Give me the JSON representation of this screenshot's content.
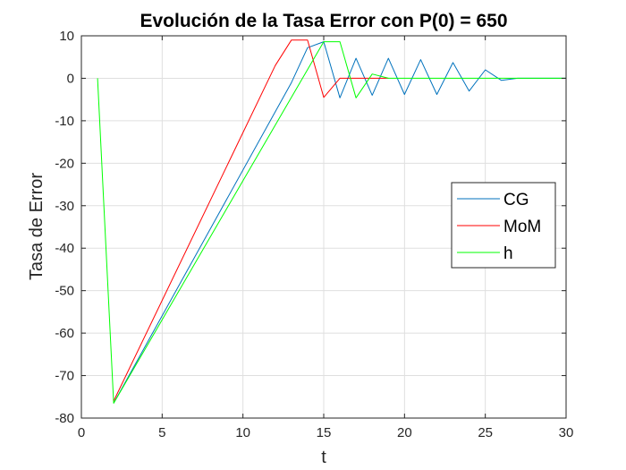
{
  "chart_data": {
    "type": "line",
    "title": "Evolución de la Tasa Error con P(0) = 650",
    "xlabel": "t",
    "ylabel": "Tasa de Error",
    "xlim": [
      0,
      30
    ],
    "ylim": [
      -80,
      10
    ],
    "xticks": [
      0,
      5,
      10,
      15,
      20,
      25,
      30
    ],
    "yticks": [
      10,
      0,
      -10,
      -20,
      -30,
      -40,
      -50,
      -60,
      -70,
      -80
    ],
    "grid": true,
    "legend_position": "right",
    "series": [
      {
        "name": "CG",
        "color": "#0072BD",
        "points": [
          [
            2,
            -76.5
          ],
          [
            13,
            -1
          ],
          [
            14,
            7.2
          ],
          [
            15,
            8.6
          ],
          [
            16,
            -4.6
          ],
          [
            17,
            4.7
          ],
          [
            18,
            -4
          ],
          [
            19,
            4.7
          ],
          [
            20,
            -3.8
          ],
          [
            21,
            4.4
          ],
          [
            22,
            -3.8
          ],
          [
            23,
            3.7
          ],
          [
            24,
            -3
          ],
          [
            25,
            2
          ],
          [
            26,
            -0.5
          ],
          [
            27,
            0
          ],
          [
            30,
            0
          ]
        ]
      },
      {
        "name": "MoM",
        "color": "#FF0000",
        "points": [
          [
            2,
            -76
          ],
          [
            12,
            3
          ],
          [
            13,
            9
          ],
          [
            14,
            9
          ],
          [
            15,
            -4.5
          ],
          [
            16,
            0
          ],
          [
            19,
            0
          ]
        ]
      },
      {
        "name": "h",
        "color": "#00FF00",
        "points": [
          [
            1,
            0
          ],
          [
            2,
            -76.5
          ],
          [
            15,
            8.6
          ],
          [
            16,
            8.6
          ],
          [
            17,
            -4.6
          ],
          [
            18,
            1
          ],
          [
            19,
            0
          ],
          [
            30,
            0
          ]
        ]
      }
    ]
  }
}
